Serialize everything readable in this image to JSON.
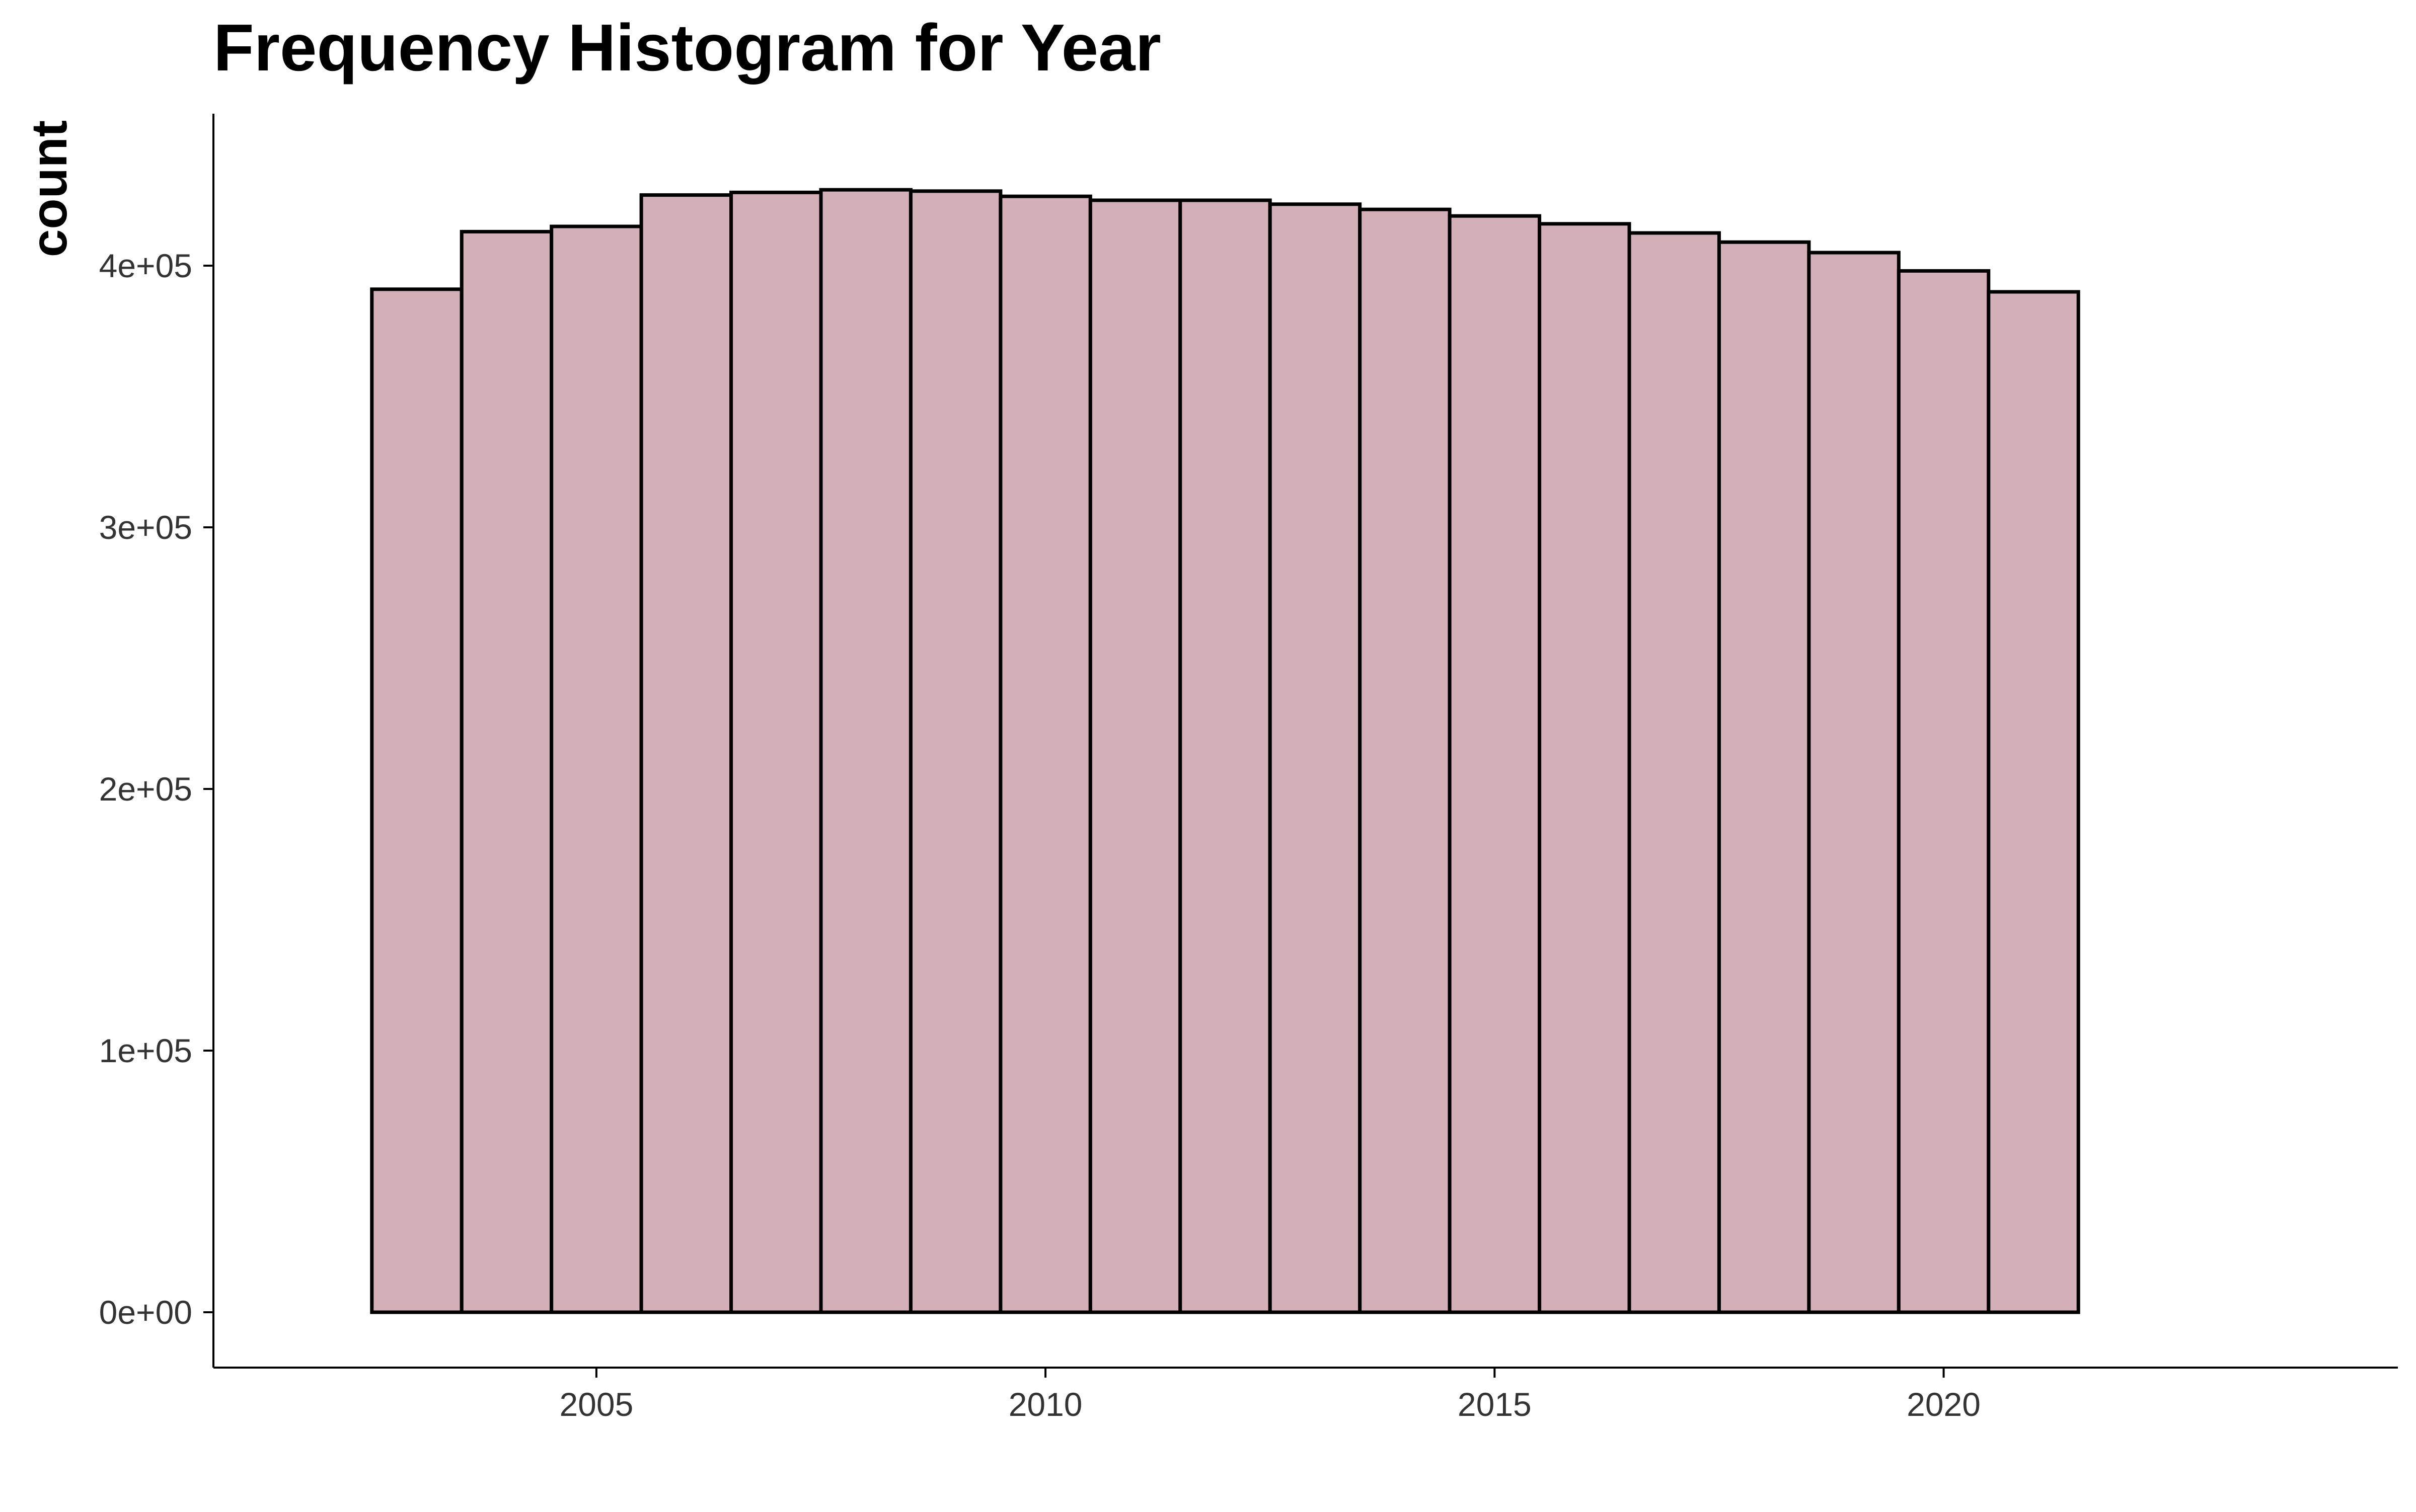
{
  "chart_data": {
    "type": "bar",
    "title": "Frequency Histogram for Year",
    "xlabel": "",
    "ylabel": "count",
    "bin_width": 1,
    "categories": [
      2003,
      2004,
      2005,
      2006,
      2007,
      2008,
      2009,
      2010,
      2011,
      2012,
      2013,
      2014,
      2015,
      2016,
      2017,
      2018,
      2019,
      2020,
      2021
    ],
    "values": [
      391000,
      413000,
      415000,
      427000,
      428000,
      429000,
      428500,
      426500,
      425000,
      425000,
      423500,
      421500,
      419000,
      416000,
      412500,
      409000,
      405000,
      398000,
      390000
    ],
    "xlim": [
      2002.5,
      2021.5
    ],
    "ylim": [
      0,
      429000
    ],
    "x_ticks": [
      2005,
      2010,
      2015,
      2020
    ],
    "x_tick_labels": [
      "2005",
      "2010",
      "2015",
      "2020"
    ],
    "y_ticks": [
      0,
      100000,
      200000,
      300000,
      400000
    ],
    "y_tick_labels": [
      "0e+00",
      "1e+05",
      "2e+05",
      "3e+05",
      "4e+05"
    ],
    "grid": false,
    "legend": "none",
    "colors": {
      "bar_fill": "#d3afb7",
      "bar_outline": "#000000",
      "axis": "#000000",
      "tick_text": "#333333",
      "background": "#ffffff"
    }
  }
}
